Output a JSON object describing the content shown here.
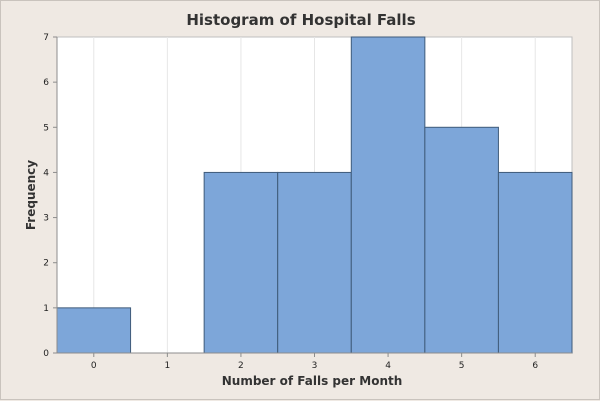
{
  "chart_data": {
    "type": "bar",
    "title": "Histogram of Hospital Falls",
    "xlabel": "Number of Falls per Month",
    "ylabel": "Frequency",
    "categories": [
      "0",
      "1",
      "2",
      "3",
      "4",
      "5",
      "6"
    ],
    "values": [
      1,
      0,
      4,
      4,
      7,
      5,
      4
    ],
    "x_ticks": [
      "0",
      "1",
      "2",
      "3",
      "4",
      "5",
      "6"
    ],
    "y_ticks": [
      "0",
      "1",
      "2",
      "3",
      "4",
      "5",
      "6",
      "7"
    ],
    "xlim": [
      -0.5,
      6.5
    ],
    "ylim": [
      0,
      7
    ],
    "grid": true,
    "bar_color": "#7da6d9",
    "bar_edge_color": "#3f5b7a",
    "plot_background": "#ffffff",
    "page_background": "#efe9e3"
  }
}
